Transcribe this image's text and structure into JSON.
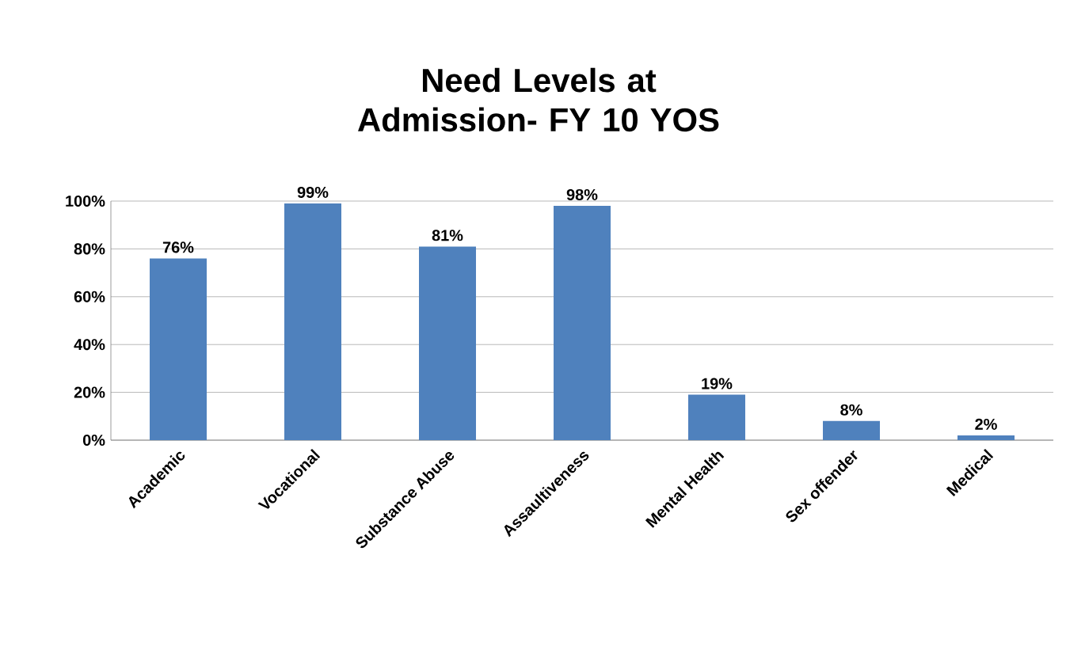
{
  "chart_data": {
    "type": "bar",
    "title": "Need Levels at Admission- FY 10 YOS",
    "categories": [
      "Academic",
      "Vocational",
      "Substance Abuse",
      "Assaultiveness",
      "Mental Health",
      "Sex offender",
      "Medical"
    ],
    "values": [
      76,
      99,
      81,
      98,
      19,
      8,
      2
    ],
    "value_labels": [
      "76%",
      "99%",
      "81%",
      "98%",
      "19%",
      "8%",
      "2%"
    ],
    "color": "#4f81bd",
    "ylim": [
      0,
      100
    ],
    "yticks": [
      {
        "value": 0,
        "label": "0%"
      },
      {
        "value": 20,
        "label": "20%"
      },
      {
        "value": 40,
        "label": "40%"
      },
      {
        "value": 60,
        "label": "60%"
      },
      {
        "value": 80,
        "label": "80%"
      },
      {
        "value": 100,
        "label": "100%"
      }
    ],
    "grid": "y"
  }
}
